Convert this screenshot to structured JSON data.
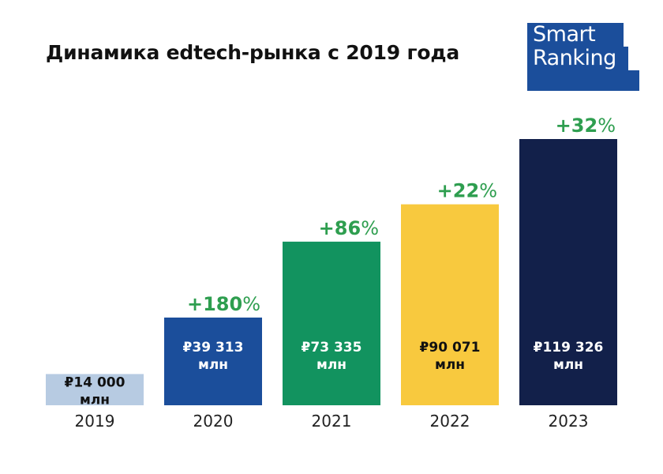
{
  "logo": {
    "line1": "Smart",
    "line2": "Ranking",
    "color": "#1b4e9b"
  },
  "chart_data": {
    "type": "bar",
    "title": "Динамика edtech-рынка с 2019 года",
    "xlabel": "",
    "ylabel": "",
    "categories": [
      "2019",
      "2020",
      "2021",
      "2022",
      "2023"
    ],
    "values": [
      14000,
      39313,
      73335,
      90071,
      119326
    ],
    "unit": "млн",
    "value_labels": [
      "₽14 000",
      "₽39 313",
      "₽73 335",
      "₽90 071",
      "₽119 326"
    ],
    "growth_labels": [
      "",
      "+180",
      "+86",
      "+22",
      "+32"
    ],
    "growth_suffix": "%",
    "colors": [
      "#b7cbe2",
      "#1b4e9b",
      "#12935f",
      "#f8c93e",
      "#12204a"
    ],
    "label_colors": [
      "#111111",
      "#ffffff",
      "#ffffff",
      "#111111",
      "#ffffff"
    ],
    "growth_color": "#2e9e4f",
    "ylim": [
      0,
      119326
    ],
    "grid": false
  }
}
